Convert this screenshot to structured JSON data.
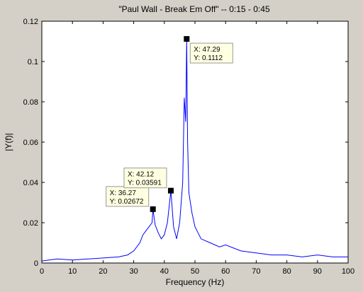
{
  "chart_data": {
    "type": "line",
    "title": "\"Paul Wall - Break Em Off\" -- 0:15 - 0:45",
    "xlabel": "Frequency (Hz)",
    "ylabel": "|Y(f)|",
    "xlim": [
      0,
      100
    ],
    "ylim": [
      0,
      0.12
    ],
    "x_ticks": [
      "0",
      "10",
      "20",
      "30",
      "40",
      "50",
      "60",
      "70",
      "80",
      "90",
      "100"
    ],
    "y_ticks": [
      "0",
      "0.02",
      "0.04",
      "0.06",
      "0.08",
      "0.1",
      "0.12"
    ],
    "grid": false,
    "series": [
      {
        "color": "#0000ff",
        "x": [
          0,
          5,
          10,
          15,
          20,
          25,
          28,
          30,
          32,
          33,
          34,
          35,
          36,
          36.27,
          37,
          38,
          39,
          40,
          41,
          42.12,
          43,
          44,
          45,
          46,
          46.5,
          47,
          47.29,
          47.6,
          48,
          49,
          50,
          52,
          55,
          58,
          60,
          65,
          70,
          75,
          80,
          85,
          90,
          95,
          100
        ],
        "values": [
          0.001,
          0.002,
          0.0015,
          0.002,
          0.0025,
          0.003,
          0.004,
          0.006,
          0.01,
          0.014,
          0.016,
          0.018,
          0.02,
          0.02672,
          0.019,
          0.015,
          0.012,
          0.014,
          0.02,
          0.03591,
          0.018,
          0.012,
          0.02,
          0.04,
          0.082,
          0.07,
          0.1112,
          0.06,
          0.035,
          0.025,
          0.018,
          0.012,
          0.01,
          0.008,
          0.009,
          0.006,
          0.005,
          0.004,
          0.004,
          0.003,
          0.004,
          0.003,
          0.003
        ]
      }
    ],
    "datatips": [
      {
        "x": 36.27,
        "y": 0.02672,
        "x_text": "X: 36.27",
        "y_text": "Y: 0.02672"
      },
      {
        "x": 42.12,
        "y": 0.03591,
        "x_text": "X: 42.12",
        "y_text": "Y: 0.03591"
      },
      {
        "x": 47.29,
        "y": 0.1112,
        "x_text": "X: 47.29",
        "y_text": "Y: 0.1112"
      }
    ]
  }
}
